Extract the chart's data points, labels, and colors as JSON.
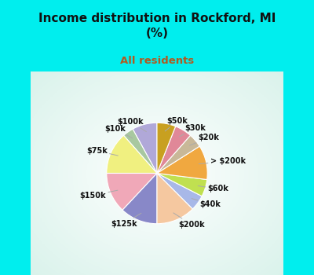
{
  "title": "Income distribution in Rockford, MI\n(%)",
  "subtitle": "All residents",
  "title_color": "#111111",
  "subtitle_color": "#b05a20",
  "background_color": "#00eeee",
  "chart_bg_gradient": true,
  "labels": [
    "$100k",
    "$10k",
    "$75k",
    "$150k",
    "$125k",
    "$200k",
    "$40k",
    "$60k",
    "> $200k",
    "$20k",
    "$30k",
    "$50k"
  ],
  "values": [
    8.0,
    3.5,
    13.5,
    13.0,
    12.0,
    12.5,
    5.0,
    5.5,
    11.0,
    4.5,
    5.5,
    6.0
  ],
  "colors": [
    "#b0a8d8",
    "#a8c8a0",
    "#f0f080",
    "#f0a8b8",
    "#8888c8",
    "#f5c8a0",
    "#a8b8e8",
    "#c0e050",
    "#f0a840",
    "#c8b898",
    "#e08898",
    "#c8a020"
  ],
  "startangle": 90,
  "label_fontsize": 7,
  "title_fontsize": 11,
  "subtitle_fontsize": 9.5
}
